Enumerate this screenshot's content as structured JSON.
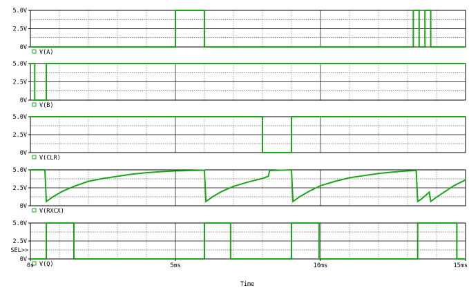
{
  "chart_data": {
    "type": "line",
    "xlabel": "Time",
    "x_unit": "ms",
    "xlim": [
      0,
      15
    ],
    "x_ticks": [
      "0s",
      "5ms",
      "10ms",
      "15ms"
    ],
    "trace_color": "#1aa51a",
    "sel_marker": "SEL>>",
    "grid": true,
    "panels": [
      {
        "name": "V(A)",
        "ylim": [
          0,
          5
        ],
        "y_ticks": [
          "0V",
          "2.5V",
          "5.0V"
        ],
        "points": [
          [
            0,
            0
          ],
          [
            5.0,
            0
          ],
          [
            5.0,
            5
          ],
          [
            6.0,
            5
          ],
          [
            6.0,
            0
          ],
          [
            13.2,
            0
          ],
          [
            13.2,
            5
          ],
          [
            13.4,
            5
          ],
          [
            13.4,
            0
          ],
          [
            13.6,
            0
          ],
          [
            13.6,
            5
          ],
          [
            13.8,
            5
          ],
          [
            13.8,
            0
          ],
          [
            15,
            0
          ]
        ]
      },
      {
        "name": "V(B)",
        "ylim": [
          0,
          5
        ],
        "y_ticks": [
          "0V",
          "2.5V",
          "5.0V"
        ],
        "points": [
          [
            0,
            5
          ],
          [
            0.15,
            5
          ],
          [
            0.15,
            0
          ],
          [
            0.55,
            0
          ],
          [
            0.55,
            5
          ],
          [
            15,
            5
          ]
        ]
      },
      {
        "name": "V(CLR)",
        "ylim": [
          0,
          5
        ],
        "y_ticks": [
          "0V",
          "2.5V",
          "5.0V"
        ],
        "points": [
          [
            0,
            5
          ],
          [
            8.0,
            5
          ],
          [
            8.0,
            0
          ],
          [
            9.0,
            0
          ],
          [
            9.0,
            5
          ],
          [
            15,
            5
          ]
        ]
      },
      {
        "name": "V(RXCX)",
        "ylim": [
          0,
          5
        ],
        "y_ticks": [
          "0V",
          "2.5V",
          "5.0V"
        ],
        "points": [
          [
            0,
            5
          ],
          [
            0.5,
            5
          ],
          [
            0.55,
            0.6
          ],
          [
            0.8,
            1.3
          ],
          [
            1.1,
            2.0
          ],
          [
            1.5,
            2.7
          ],
          [
            2.0,
            3.4
          ],
          [
            2.5,
            3.8
          ],
          [
            3.0,
            4.1
          ],
          [
            3.5,
            4.4
          ],
          [
            4.0,
            4.6
          ],
          [
            4.5,
            4.75
          ],
          [
            5.0,
            4.85
          ],
          [
            5.5,
            4.9
          ],
          [
            6.0,
            4.95
          ],
          [
            6.05,
            0.6
          ],
          [
            6.3,
            1.3
          ],
          [
            6.6,
            2.0
          ],
          [
            7.0,
            2.7
          ],
          [
            7.5,
            3.3
          ],
          [
            8.0,
            3.8
          ],
          [
            8.2,
            4.1
          ],
          [
            8.25,
            4.9
          ],
          [
            9.0,
            5.0
          ],
          [
            9.05,
            0.6
          ],
          [
            9.3,
            1.3
          ],
          [
            9.6,
            2.0
          ],
          [
            10.0,
            2.8
          ],
          [
            10.5,
            3.4
          ],
          [
            11.0,
            3.9
          ],
          [
            11.5,
            4.2
          ],
          [
            12.0,
            4.5
          ],
          [
            12.5,
            4.7
          ],
          [
            13.0,
            4.85
          ],
          [
            13.3,
            4.9
          ],
          [
            13.35,
            0.6
          ],
          [
            13.5,
            1.0
          ],
          [
            13.75,
            1.9
          ],
          [
            13.8,
            0.6
          ],
          [
            14.0,
            1.2
          ],
          [
            14.3,
            2.0
          ],
          [
            14.6,
            2.8
          ],
          [
            15.0,
            3.6
          ]
        ]
      },
      {
        "name": "V(Q)",
        "ylim": [
          0,
          5
        ],
        "y_ticks": [
          "0V",
          "2.5V",
          "5.0V"
        ],
        "points": [
          [
            0,
            0
          ],
          [
            0.55,
            0
          ],
          [
            0.55,
            5
          ],
          [
            1.5,
            5
          ],
          [
            1.5,
            0
          ],
          [
            6.0,
            0
          ],
          [
            6.0,
            5
          ],
          [
            6.9,
            5
          ],
          [
            6.9,
            0
          ],
          [
            9.0,
            0
          ],
          [
            9.0,
            5
          ],
          [
            9.95,
            5
          ],
          [
            9.95,
            0
          ],
          [
            13.35,
            0
          ],
          [
            13.35,
            5
          ],
          [
            14.7,
            5
          ],
          [
            14.7,
            0
          ],
          [
            15,
            0
          ]
        ]
      }
    ]
  }
}
